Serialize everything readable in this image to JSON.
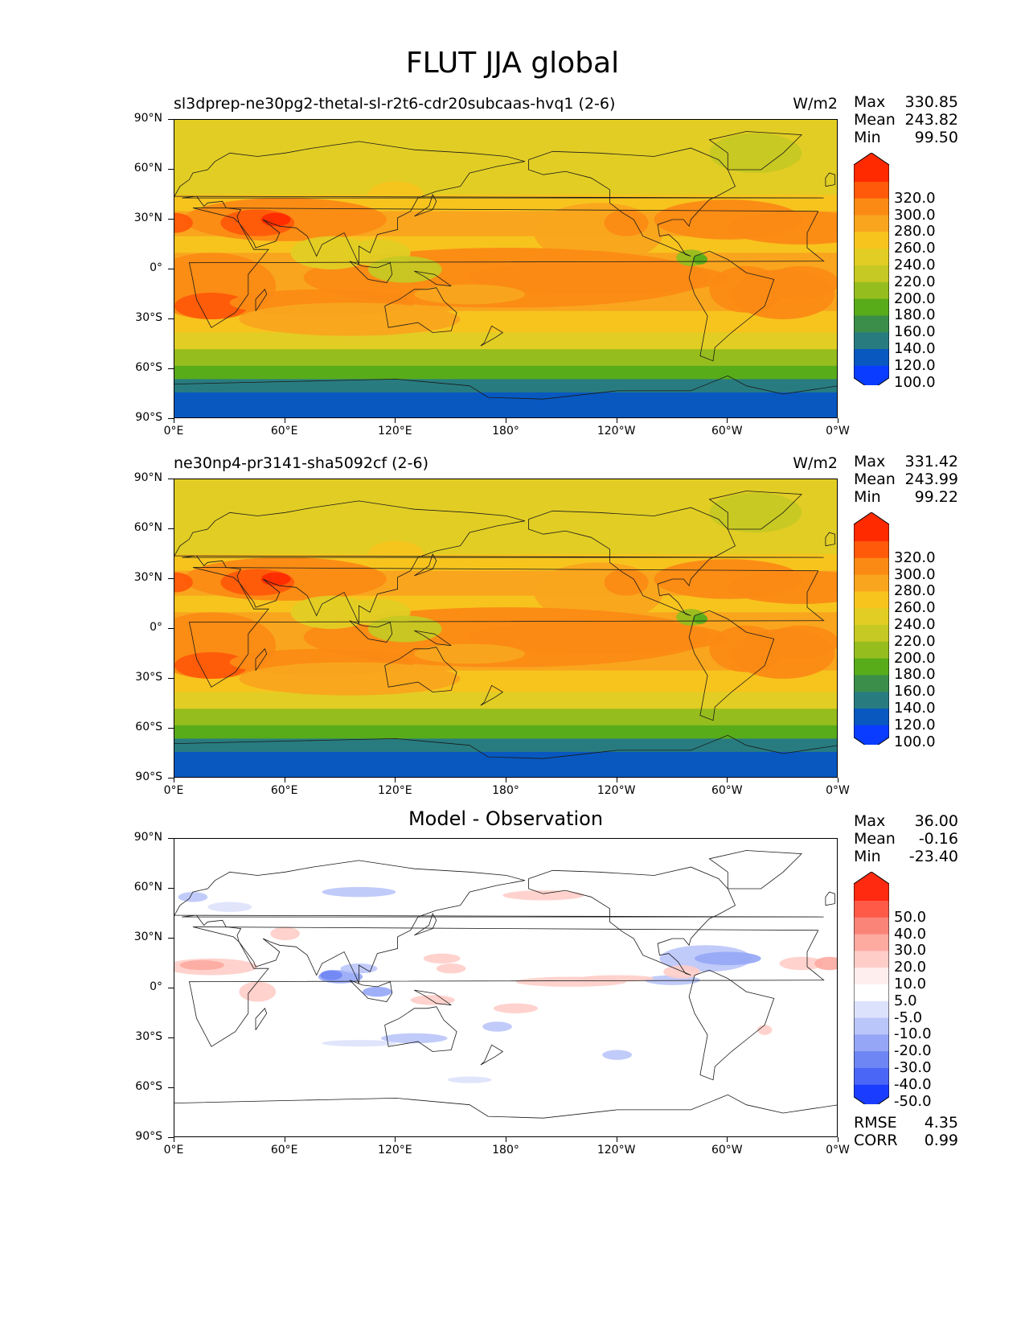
{
  "main_title": "FLUT JJA global",
  "chart_data": [
    {
      "type": "heatmap",
      "title": "sl3dprep-ne30pg2-thetal-sl-r2t6-cdr20subcaas-hvq1 (2-6)",
      "units": "W/m2",
      "stats": {
        "max": "330.85",
        "mean": "243.82",
        "min": "99.50"
      },
      "xlabels": [
        "0°E",
        "60°E",
        "120°E",
        "180°",
        "120°W",
        "60°W",
        "0°W"
      ],
      "ylabels": [
        "90°N",
        "60°N",
        "30°N",
        "0°",
        "30°S",
        "60°S",
        "90°S"
      ],
      "colorbar": {
        "levels": [
          "320.0",
          "300.0",
          "280.0",
          "260.0",
          "240.0",
          "220.0",
          "200.0",
          "180.0",
          "160.0",
          "140.0",
          "120.0",
          "100.0"
        ],
        "colors": [
          "#ff2a00",
          "#ff5a0a",
          "#fb8a14",
          "#f9a51e",
          "#f7c41e",
          "#e2cd24",
          "#c6c823",
          "#96bd1e",
          "#58ac1a",
          "#3a8e4a",
          "#287c80",
          "#0858c0",
          "#0a3cff"
        ]
      }
    },
    {
      "type": "heatmap",
      "title": "ne30np4-pr3141-sha5092cf (2-6)",
      "units": "W/m2",
      "stats": {
        "max": "331.42",
        "mean": "243.99",
        "min": "99.22"
      },
      "xlabels": [
        "0°E",
        "60°E",
        "120°E",
        "180°",
        "120°W",
        "60°W",
        "0°W"
      ],
      "ylabels": [
        "90°N",
        "60°N",
        "30°N",
        "0°",
        "30°S",
        "60°S",
        "90°S"
      ],
      "colorbar": {
        "levels": [
          "320.0",
          "300.0",
          "280.0",
          "260.0",
          "240.0",
          "220.0",
          "200.0",
          "180.0",
          "160.0",
          "140.0",
          "120.0",
          "100.0"
        ],
        "colors": [
          "#ff2a00",
          "#ff5a0a",
          "#fb8a14",
          "#f9a51e",
          "#f7c41e",
          "#e2cd24",
          "#c6c823",
          "#96bd1e",
          "#58ac1a",
          "#3a8e4a",
          "#287c80",
          "#0858c0",
          "#0a3cff"
        ]
      }
    },
    {
      "type": "heatmap",
      "title": "Model - Observation",
      "units": "",
      "stats": {
        "max": "36.00",
        "mean": "-0.16",
        "min": "-23.40"
      },
      "rmse": "4.35",
      "corr": "0.99",
      "xlabels": [
        "0°E",
        "60°E",
        "120°E",
        "180°",
        "120°W",
        "60°W",
        "0°W"
      ],
      "ylabels": [
        "90°N",
        "60°N",
        "30°N",
        "0°",
        "30°S",
        "60°S",
        "90°S"
      ],
      "colorbar": {
        "levels": [
          "50.0",
          "40.0",
          "30.0",
          "20.0",
          "10.0",
          "5.0",
          "-5.0",
          "-10.0",
          "-20.0",
          "-30.0",
          "-40.0",
          "-50.0"
        ],
        "colors": [
          "#ff2a10",
          "#ff5a48",
          "#fb8478",
          "#fdaaa0",
          "#ffcdc8",
          "#ffeeee",
          "#ffffff",
          "#dde2fc",
          "#bac5fa",
          "#95a6f6",
          "#6e86f4",
          "#4a66f6",
          "#1a3cff"
        ]
      }
    }
  ],
  "stat_labels": {
    "max": "Max",
    "mean": "Mean",
    "min": "Min",
    "rmse": "RMSE",
    "corr": "CORR"
  }
}
